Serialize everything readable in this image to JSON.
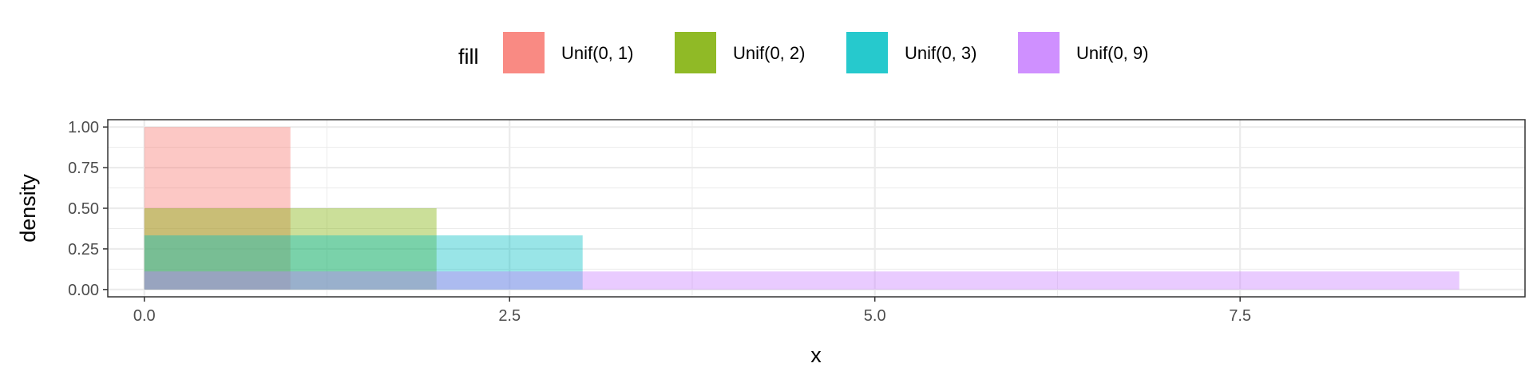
{
  "chart_data": {
    "type": "bar",
    "xlabel": "x",
    "ylabel": "density",
    "xlim": [
      -0.25,
      9.45
    ],
    "ylim": [
      -0.045,
      1.045
    ],
    "x_ticks": [
      {
        "value": 0.0,
        "label": "0.0"
      },
      {
        "value": 2.5,
        "label": "2.5"
      },
      {
        "value": 5.0,
        "label": "5.0"
      },
      {
        "value": 7.5,
        "label": "7.5"
      }
    ],
    "y_ticks": [
      {
        "value": 0.0,
        "label": "0.00"
      },
      {
        "value": 0.25,
        "label": "0.25"
      },
      {
        "value": 0.5,
        "label": "0.50"
      },
      {
        "value": 0.75,
        "label": "0.75"
      },
      {
        "value": 1.0,
        "label": "1.00"
      }
    ],
    "grid": true,
    "legend": {
      "title": "fill",
      "position": "top"
    },
    "fill_opacity": 0.4,
    "series": [
      {
        "name": "Unif(0, 1)",
        "color": "#F8766D",
        "x_min": 0,
        "x_max": 1,
        "density": 1.0
      },
      {
        "name": "Unif(0, 2)",
        "color": "#7CAE00",
        "x_min": 0,
        "x_max": 2,
        "density": 0.5
      },
      {
        "name": "Unif(0, 3)",
        "color": "#00BFC4",
        "x_min": 0,
        "x_max": 3,
        "density": 0.3333
      },
      {
        "name": "Unif(0, 9)",
        "color": "#C77CFF",
        "x_min": 0,
        "x_max": 9,
        "density": 0.1111
      }
    ]
  }
}
